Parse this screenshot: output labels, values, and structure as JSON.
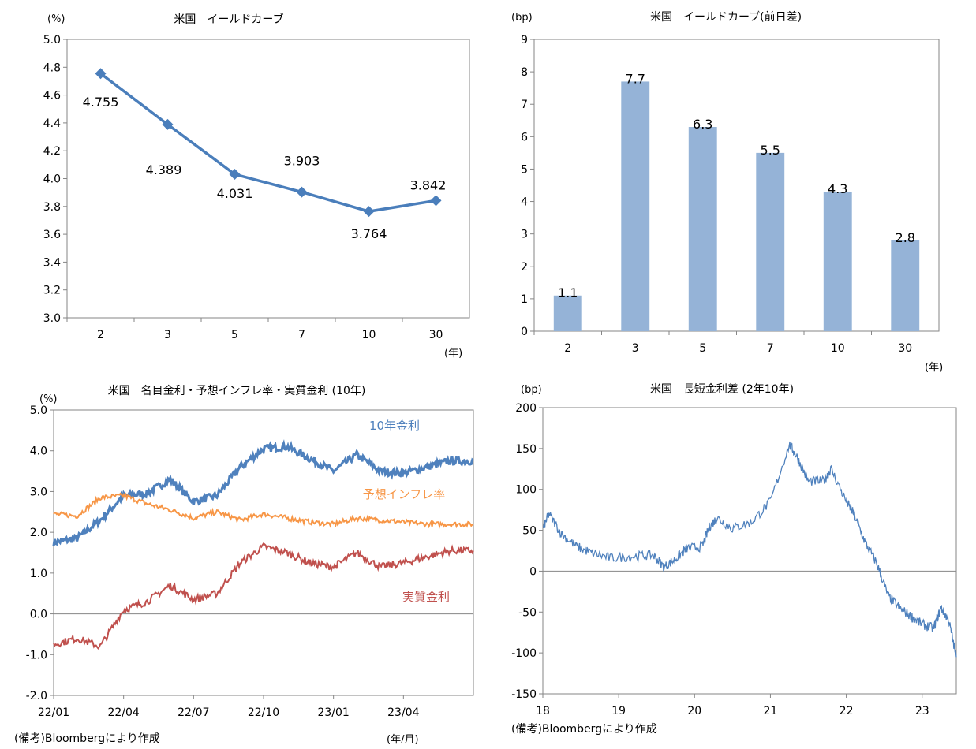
{
  "notes": {
    "source_left": "(備考)Bloombergにより作成",
    "source_right": "(備考)Bloombergにより作成"
  },
  "chart_data": [
    {
      "type": "line",
      "title": "米国　イールドカーブ",
      "ylabel": "(%)",
      "xlabel": "(年)",
      "categories": [
        "2",
        "3",
        "5",
        "7",
        "10",
        "30"
      ],
      "values": [
        4.755,
        4.389,
        4.031,
        3.903,
        3.764,
        3.842
      ],
      "data_labels": [
        "4.755",
        "4.389",
        "4.031",
        "3.903",
        "3.764",
        "3.842"
      ],
      "ylim": [
        3.0,
        5.0
      ],
      "yticks": [
        "3.0",
        "3.2",
        "3.4",
        "3.6",
        "3.8",
        "4.0",
        "4.2",
        "4.4",
        "4.6",
        "4.8",
        "5.0"
      ],
      "color": "#4a7ebb",
      "grid": false
    },
    {
      "type": "bar",
      "title": "米国　イールドカーブ(前日差)",
      "ylabel": "(bp)",
      "xlabel": "(年)",
      "categories": [
        "2",
        "3",
        "5",
        "7",
        "10",
        "30"
      ],
      "values": [
        1.1,
        7.7,
        6.3,
        5.5,
        4.3,
        2.8
      ],
      "data_labels": [
        "1.1",
        "7.7",
        "6.3",
        "5.5",
        "4.3",
        "2.8"
      ],
      "ylim": [
        0,
        9
      ],
      "yticks": [
        "0",
        "1",
        "2",
        "3",
        "4",
        "5",
        "6",
        "7",
        "8",
        "9"
      ],
      "color": "#95b3d7",
      "grid": false
    },
    {
      "type": "line",
      "title": "米国　名目金利・予想インフレ率・実質金利 (10年)",
      "ylabel": "(%)",
      "xlabel": "(年/月)",
      "x_ticks": [
        "22/01",
        "22/04",
        "22/07",
        "22/10",
        "23/01",
        "23/04"
      ],
      "x_range": [
        "22/01",
        "23/07"
      ],
      "ylim": [
        -2.0,
        5.0
      ],
      "yticks": [
        "-2.0",
        "-1.0",
        "0.0",
        "1.0",
        "2.0",
        "3.0",
        "4.0",
        "5.0"
      ],
      "series": [
        {
          "name": "10年金利",
          "color": "#4f81bd",
          "x": [
            "22/01",
            "22/02",
            "22/03",
            "22/04",
            "22/05",
            "22/06",
            "22/07",
            "22/08",
            "22/09",
            "22/10",
            "22/11",
            "22/12",
            "23/01",
            "23/02",
            "23/03",
            "23/04",
            "23/05",
            "23/06",
            "23/07"
          ],
          "values": [
            1.75,
            1.85,
            2.3,
            2.9,
            2.95,
            3.3,
            2.75,
            2.9,
            3.6,
            4.05,
            4.1,
            3.8,
            3.5,
            3.9,
            3.5,
            3.45,
            3.6,
            3.75,
            3.75
          ]
        },
        {
          "name": "予想インフレ率",
          "color": "#f79646",
          "x": [
            "22/01",
            "22/02",
            "22/03",
            "22/04",
            "22/05",
            "22/06",
            "22/07",
            "22/08",
            "22/09",
            "22/10",
            "22/11",
            "22/12",
            "23/01",
            "23/02",
            "23/03",
            "23/04",
            "23/05",
            "23/06",
            "23/07"
          ],
          "values": [
            2.45,
            2.4,
            2.85,
            2.9,
            2.7,
            2.55,
            2.35,
            2.5,
            2.3,
            2.45,
            2.35,
            2.25,
            2.2,
            2.35,
            2.3,
            2.25,
            2.2,
            2.2,
            2.2
          ]
        },
        {
          "name": "実質金利",
          "color": "#c0504d",
          "x": [
            "22/01",
            "22/02",
            "22/03",
            "22/04",
            "22/05",
            "22/06",
            "22/07",
            "22/08",
            "22/09",
            "22/10",
            "22/11",
            "22/12",
            "23/01",
            "23/02",
            "23/03",
            "23/04",
            "23/05",
            "23/06",
            "23/07"
          ],
          "values": [
            -0.75,
            -0.6,
            -0.8,
            0.1,
            0.3,
            0.7,
            0.35,
            0.5,
            1.25,
            1.65,
            1.5,
            1.25,
            1.15,
            1.5,
            1.15,
            1.25,
            1.4,
            1.55,
            1.55
          ]
        }
      ],
      "grid": false
    },
    {
      "type": "line",
      "title": "米国　長短金利差 (2年10年)",
      "ylabel": "(bp)",
      "x_ticks": [
        "18",
        "19",
        "20",
        "21",
        "22",
        "23"
      ],
      "x_range": [
        2018.0,
        2023.45
      ],
      "ylim": [
        -150,
        200
      ],
      "yticks": [
        "-150",
        "-100",
        "-50",
        "0",
        "50",
        "100",
        "150",
        "200"
      ],
      "series": [
        {
          "name": "",
          "color": "#4f81bd",
          "x": [
            2018.0,
            2018.08,
            2018.25,
            2018.45,
            2018.65,
            2018.9,
            2019.2,
            2019.45,
            2019.6,
            2019.75,
            2019.9,
            2020.1,
            2020.2,
            2020.3,
            2020.5,
            2020.75,
            2021.0,
            2021.25,
            2021.35,
            2021.5,
            2021.7,
            2021.8,
            2022.0,
            2022.1,
            2022.25,
            2022.4,
            2022.55,
            2022.7,
            2022.85,
            2023.0,
            2023.15,
            2023.25,
            2023.35,
            2023.45
          ],
          "values": [
            52,
            70,
            45,
            30,
            22,
            16,
            18,
            20,
            5,
            15,
            28,
            30,
            55,
            65,
            52,
            60,
            85,
            155,
            140,
            110,
            110,
            125,
            85,
            70,
            35,
            10,
            -30,
            -45,
            -55,
            -65,
            -70,
            -45,
            -60,
            -105
          ]
        }
      ],
      "grid": false
    }
  ]
}
